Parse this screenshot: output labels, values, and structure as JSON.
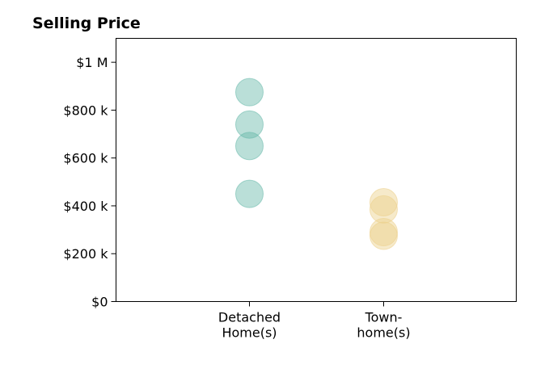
{
  "chart_data": {
    "type": "scatter",
    "title": "Selling Price",
    "xlabel": "",
    "ylabel": "",
    "categories": [
      [
        "Detached",
        "Home(s)"
      ],
      [
        "Town-",
        "home(s)"
      ]
    ],
    "ylim": [
      0,
      1100000
    ],
    "y_ticks": [
      {
        "value": 0,
        "label": "$0"
      },
      {
        "value": 200000,
        "label": "$200 k"
      },
      {
        "value": 400000,
        "label": "$400 k"
      },
      {
        "value": 600000,
        "label": "$600 k"
      },
      {
        "value": 800000,
        "label": "$800 k"
      },
      {
        "value": 1000000,
        "label": "$1 M"
      }
    ],
    "series": [
      {
        "category_index": 0,
        "color": "#66b8a9",
        "values": [
          450000,
          650000,
          740000,
          875000
        ]
      },
      {
        "category_index": 1,
        "color": "#ecd08a",
        "values": [
          275000,
          290000,
          385000,
          415000
        ]
      }
    ],
    "grid": false,
    "legend": "none"
  }
}
